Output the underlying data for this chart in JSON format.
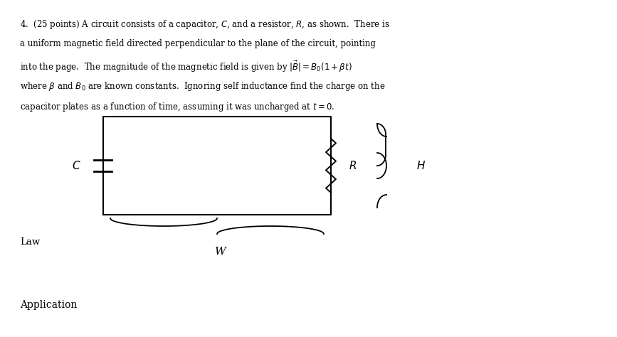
{
  "background_color": "#ffffff",
  "title_text": "4.  (25 points) A circuit consists of a capacitor, $C$, and a resistor, $R$, as shown.  There is",
  "line2": "a uniform magnetic field directed perpendicular to the plane of the circuit, pointing",
  "line3": "into the page.  The magnitude of the magnetic field is given by $|\\vec{B}| = B_0(1 + \\beta t)$",
  "line4": "where $\\beta$ and $B_0$ are known constants.  Ignoring self inductance find the charge on the",
  "line5": "capacitor plates as a function of time, assuming it was uncharged at $t = 0$.",
  "law_label": "Law",
  "w_label": "W",
  "app_label": "Application",
  "C_label": "$C$",
  "R_label": "$R$",
  "H_label": "$H$",
  "text_color": "#000000",
  "line_color": "#000000"
}
